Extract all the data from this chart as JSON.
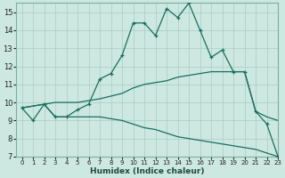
{
  "xlabel": "Humidex (Indice chaleur)",
  "xlim": [
    -0.5,
    23
  ],
  "ylim": [
    7,
    15.5
  ],
  "xticks": [
    0,
    1,
    2,
    3,
    4,
    5,
    6,
    7,
    8,
    9,
    10,
    11,
    12,
    13,
    14,
    15,
    16,
    17,
    18,
    19,
    20,
    21,
    22,
    23
  ],
  "yticks": [
    7,
    8,
    9,
    10,
    11,
    12,
    13,
    14,
    15
  ],
  "background_color": "#cce8e0",
  "grid_color": "#aaccc4",
  "line_color": "#1a6e60",
  "series": [
    {
      "x": [
        0,
        1,
        2,
        3,
        4,
        5,
        6,
        7,
        8,
        9,
        10,
        11,
        12,
        13,
        14,
        15,
        16,
        17,
        18,
        19,
        20,
        21,
        22,
        23
      ],
      "y": [
        9.7,
        9.0,
        9.9,
        9.2,
        9.2,
        9.6,
        9.9,
        11.3,
        11.6,
        12.6,
        14.4,
        14.4,
        13.7,
        15.2,
        14.7,
        15.5,
        14.0,
        12.5,
        12.9,
        11.7,
        11.7,
        9.5,
        8.8,
        7.0
      ],
      "marker": true
    },
    {
      "x": [
        0,
        2,
        3,
        5,
        6,
        7,
        9,
        10,
        11,
        12,
        13,
        14,
        15,
        16,
        17,
        18,
        19,
        20,
        21,
        22,
        23
      ],
      "y": [
        9.7,
        9.9,
        10.0,
        10.0,
        10.1,
        10.2,
        10.5,
        10.8,
        11.0,
        11.1,
        11.2,
        11.4,
        11.5,
        11.6,
        11.7,
        11.7,
        11.7,
        11.7,
        9.5,
        9.2,
        9.0
      ],
      "marker": false
    },
    {
      "x": [
        0,
        2,
        3,
        5,
        6,
        7,
        9,
        10,
        11,
        12,
        13,
        14,
        15,
        16,
        17,
        18,
        19,
        20,
        21,
        22,
        23
      ],
      "y": [
        9.7,
        9.9,
        9.2,
        9.2,
        9.2,
        9.2,
        9.0,
        8.8,
        8.6,
        8.5,
        8.3,
        8.1,
        8.0,
        7.9,
        7.8,
        7.7,
        7.6,
        7.5,
        7.4,
        7.2,
        7.0
      ],
      "marker": false
    }
  ]
}
